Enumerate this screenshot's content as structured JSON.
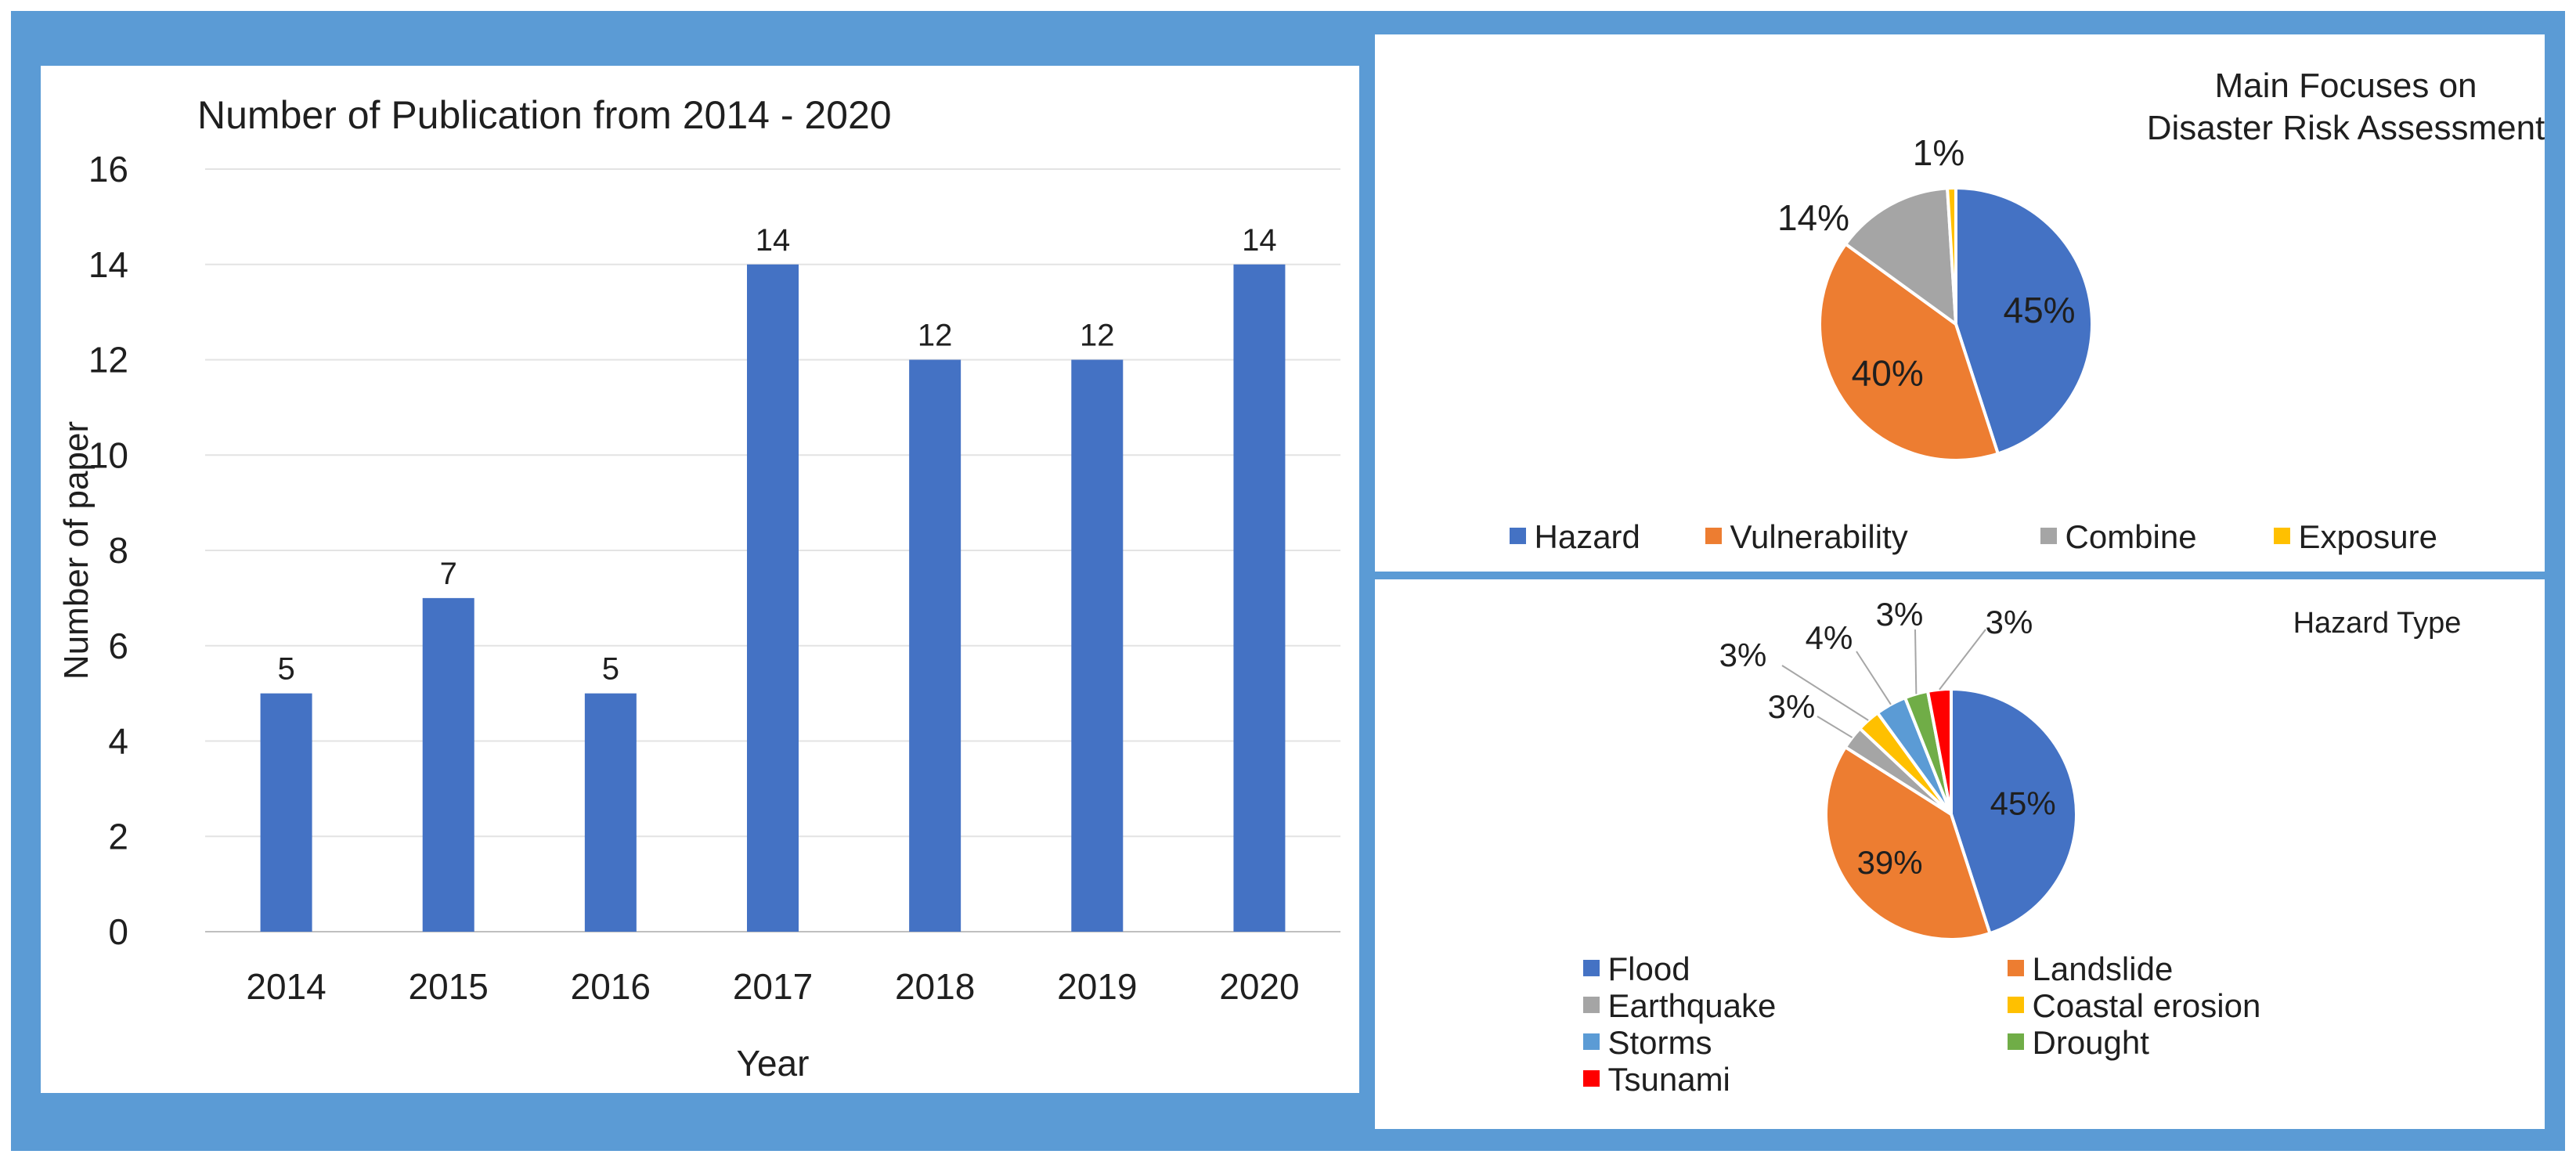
{
  "chart_data": [
    {
      "type": "bar",
      "title": "Number of Publication from 2014 - 2020",
      "xlabel": "Year",
      "ylabel": "Number of paper",
      "categories": [
        "2014",
        "2015",
        "2016",
        "2017",
        "2018",
        "2019",
        "2020"
      ],
      "values": [
        5,
        7,
        5,
        14,
        12,
        12,
        14
      ],
      "ylim": [
        0,
        16
      ],
      "yticks": [
        0,
        2,
        4,
        6,
        8,
        10,
        12,
        14,
        16
      ],
      "grid": true,
      "color": "#4472c4",
      "data_labels": [
        "5",
        "7",
        "5",
        "14",
        "12",
        "12",
        "14"
      ]
    },
    {
      "type": "pie",
      "title": "Main Focuses on Disaster Risk Assessment",
      "title_lines": [
        "Main Focuses on",
        "Disaster Risk Assessment"
      ],
      "labels": [
        "Hazard",
        "Vulnerability",
        "Combine",
        "Exposure"
      ],
      "values": [
        45,
        40,
        14,
        1
      ],
      "data_labels": [
        "45%",
        "40%",
        "14%",
        "1%"
      ],
      "colors": [
        "#4472c4",
        "#ed7d31",
        "#a5a5a5",
        "#ffc000"
      ],
      "legend": "bottom"
    },
    {
      "type": "pie",
      "title": "Hazard Type",
      "labels": [
        "Flood",
        "Landslide",
        "Earthquake",
        "Coastal erosion",
        "Storms",
        "Drought",
        "Tsunami"
      ],
      "values": [
        45,
        39,
        3,
        3,
        4,
        3,
        3
      ],
      "data_labels": [
        "45%",
        "39%",
        "3%",
        "3%",
        "4%",
        "3%",
        "3%"
      ],
      "colors": [
        "#4472c4",
        "#ed7d31",
        "#a5a5a5",
        "#ffc000",
        "#5b9bd5",
        "#70ad47",
        "#ff0000"
      ],
      "legend": "bottom"
    }
  ]
}
